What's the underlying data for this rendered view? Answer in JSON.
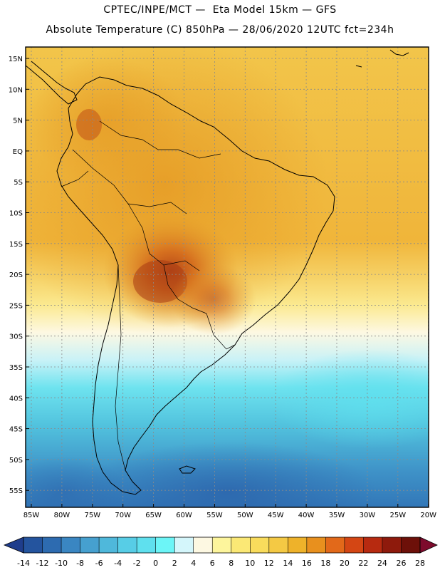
{
  "header": {
    "line1": "CPTEC/INPE/MCT —  Eta Model 15km — GFS",
    "line2": "Absolute Temperature (C) 850hPa — 28/06/2020 12UTC fct=234h"
  },
  "map": {
    "lat_labels": [
      "15N",
      "10N",
      "5N",
      "EQ",
      "5S",
      "10S",
      "15S",
      "20S",
      "25S",
      "30S",
      "35S",
      "40S",
      "45S",
      "50S",
      "55S"
    ],
    "lon_labels": [
      "85W",
      "80W",
      "75W",
      "70W",
      "65W",
      "60W",
      "55W",
      "50W",
      "45W",
      "40W",
      "35W",
      "30W",
      "25W",
      "20W"
    ]
  },
  "colorbar": {
    "labels": [
      "-14",
      "-12",
      "-10",
      "-8",
      "-6",
      "-4",
      "-2",
      "0",
      "2",
      "4",
      "6",
      "8",
      "10",
      "12",
      "14",
      "16",
      "18",
      "20",
      "22",
      "24",
      "26",
      "28"
    ],
    "colors": [
      "#1f3d8c",
      "#24549e",
      "#2d6bb0",
      "#3a86c2",
      "#46a0cf",
      "#4fb8db",
      "#57cde6",
      "#5fe0ee",
      "#6cf5f7",
      "#d4f6fb",
      "#fdf8e2",
      "#fdf59c",
      "#fbe875",
      "#f9dc5c",
      "#f4c944",
      "#eeb22a",
      "#e8901e",
      "#e2691a",
      "#d44614",
      "#b72a10",
      "#8e1a0c",
      "#6d1009",
      "#7d0a2c"
    ]
  }
}
